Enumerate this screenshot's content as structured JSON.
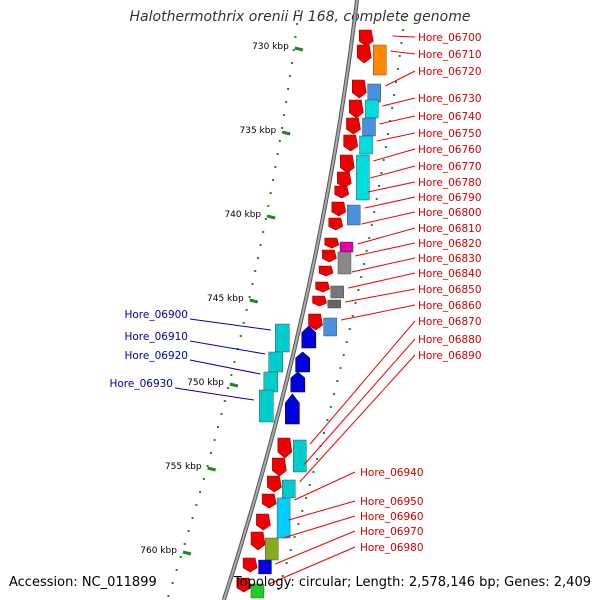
{
  "title": "Halothermothrix orenii H 168, complete genome",
  "footer": {
    "accession": "Accession: NC_011899",
    "topology": "Topology: circular; Length: 2,578,146 bp; Genes: 2,409"
  },
  "colors": {
    "backbone": "#888888",
    "forward_gene": "#ee0000",
    "reverse_gene": "#0000dd",
    "label_forward": "#cc0000",
    "label_reverse": "#0000aa",
    "tick": "#1a8a1a"
  },
  "scale": {
    "unit": "kbp",
    "ticks": [
      {
        "label": "730 kbp",
        "kbp": 730
      },
      {
        "label": "735 kbp",
        "kbp": 735
      },
      {
        "label": "740 kbp",
        "kbp": 740
      },
      {
        "label": "745 kbp",
        "kbp": 745
      },
      {
        "label": "750 kbp",
        "kbp": 750
      },
      {
        "label": "755 kbp",
        "kbp": 755
      },
      {
        "label": "760 kbp",
        "kbp": 760
      }
    ]
  },
  "genes_right": [
    "Hore_06700",
    "Hore_06710",
    "Hore_06720",
    "Hore_06730",
    "Hore_06740",
    "Hore_06750",
    "Hore_06760",
    "Hore_06770",
    "Hore_06780",
    "Hore_06790",
    "Hore_06800",
    "Hore_06810",
    "Hore_06820",
    "Hore_06830",
    "Hore_06840",
    "Hore_06850",
    "Hore_06860",
    "Hore_06870",
    "Hore_06880",
    "Hore_06890",
    "Hore_06940",
    "Hore_06950",
    "Hore_06960",
    "Hore_06970",
    "Hore_06980"
  ],
  "genes_left": [
    "Hore_06900",
    "Hore_06910",
    "Hore_06920",
    "Hore_06930"
  ]
}
